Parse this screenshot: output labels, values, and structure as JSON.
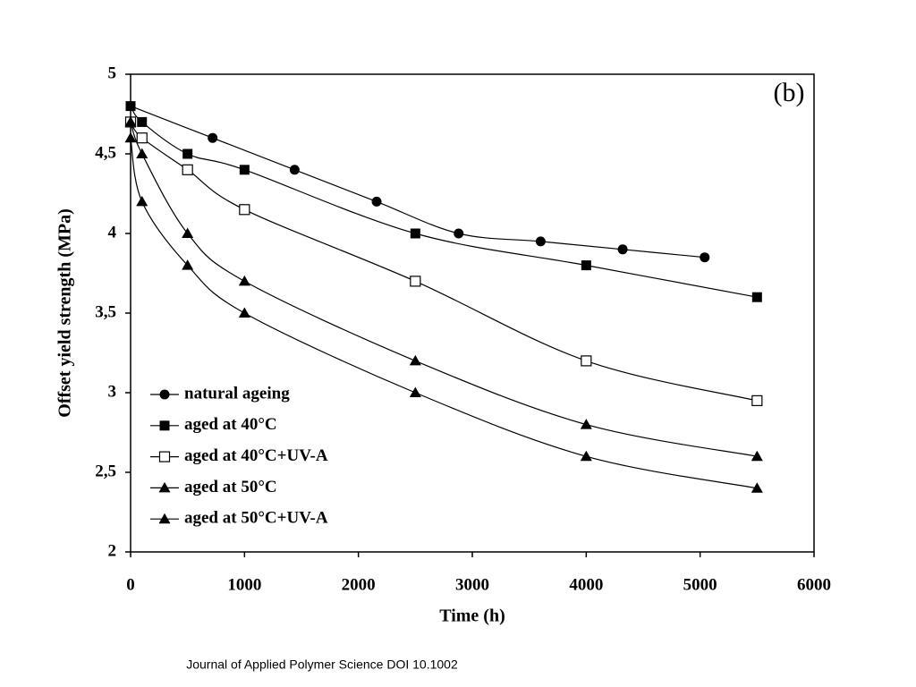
{
  "chart_data": {
    "type": "line",
    "annotation": "(b)",
    "xlabel": "Time (h)",
    "ylabel": "Offset yield strength (MPa)",
    "xlim": [
      0,
      6000
    ],
    "xticks": [
      0,
      1000,
      2000,
      3000,
      4000,
      5000,
      6000
    ],
    "ylim": [
      2,
      5
    ],
    "yticks": [
      2,
      {
        "value": 2.5,
        "label": "2,5"
      },
      3,
      {
        "value": 3.5,
        "label": "3,5"
      },
      4,
      {
        "value": 4.5,
        "label": "4,5"
      },
      5
    ],
    "legend": "lower-left",
    "series": [
      {
        "name": "natural ageing",
        "color": "#000000",
        "marker": "circle",
        "x": [
          0,
          720,
          1440,
          2160,
          2880,
          3600,
          4320,
          5040
        ],
        "values": [
          4.8,
          4.6,
          4.4,
          4.2,
          4.0,
          3.95,
          3.9,
          3.85
        ]
      },
      {
        "name": "aged at 40°C",
        "color": "#000000",
        "marker": "square",
        "x": [
          0,
          100,
          500,
          1000,
          2500,
          4000,
          5500
        ],
        "values": [
          4.8,
          4.7,
          4.5,
          4.4,
          4.0,
          3.8,
          3.6
        ]
      },
      {
        "name": "aged at 40°C+UV-A",
        "color": "#000000",
        "marker": "square-open",
        "x": [
          0,
          100,
          500,
          1000,
          2500,
          4000,
          5500
        ],
        "values": [
          4.7,
          4.6,
          4.4,
          4.15,
          3.7,
          3.2,
          2.95
        ]
      },
      {
        "name": "aged at 50°C",
        "color": "#000000",
        "marker": "triangle",
        "x": [
          0,
          100,
          500,
          1000,
          2500,
          4000,
          5500
        ],
        "values": [
          4.7,
          4.5,
          4.0,
          3.7,
          3.2,
          2.8,
          2.6
        ]
      },
      {
        "name": "aged at 50°C+UV-A",
        "color": "#000000",
        "marker": "triangle",
        "x": [
          0,
          100,
          500,
          1000,
          2500,
          4000,
          5500
        ],
        "values": [
          4.6,
          4.2,
          3.8,
          3.5,
          3.0,
          2.6,
          2.4
        ]
      }
    ]
  },
  "footer": "Journal of Applied Polymer Science DOI 10.1002"
}
